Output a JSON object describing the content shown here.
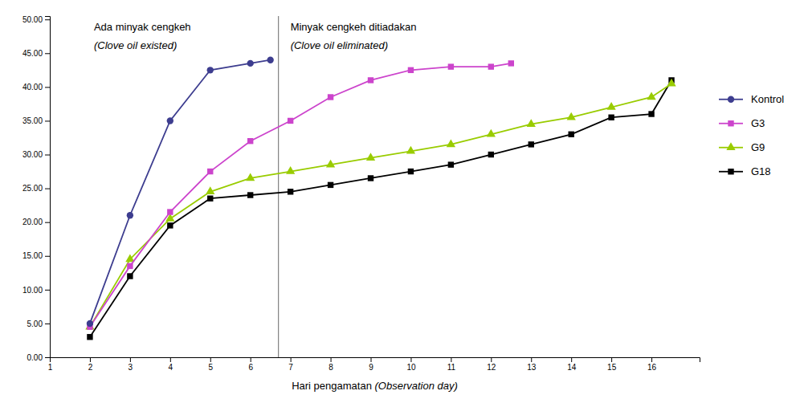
{
  "chart_data": {
    "type": "line",
    "xlabel": "Hari pengamatan (Observation day)",
    "series": [
      {
        "name": "Kontrol",
        "color": "#3d3d8f",
        "marker": "circle",
        "x": [
          2,
          3,
          4,
          5,
          6,
          6.5
        ],
        "values": [
          5.0,
          21.0,
          35.0,
          42.5,
          43.5,
          44.0
        ]
      },
      {
        "name": "G3",
        "color": "#cc44cc",
        "marker": "square",
        "x": [
          2,
          3,
          4,
          5,
          6,
          7,
          8,
          9,
          10,
          11,
          12,
          12.5
        ],
        "values": [
          4.5,
          13.5,
          21.5,
          27.5,
          32.0,
          35.0,
          38.5,
          41.0,
          42.5,
          43.0,
          43.0,
          43.5
        ]
      },
      {
        "name": "G9",
        "color": "#99cc00",
        "marker": "triangle",
        "x": [
          2,
          3,
          4,
          5,
          6,
          7,
          8,
          9,
          10,
          11,
          12,
          13,
          14,
          15,
          16,
          16.5
        ],
        "values": [
          4.5,
          14.5,
          20.5,
          24.5,
          26.5,
          27.5,
          28.5,
          29.5,
          30.5,
          31.5,
          33.0,
          34.5,
          35.5,
          37.0,
          38.5,
          40.5
        ]
      },
      {
        "name": "G18",
        "color": "#000000",
        "marker": "square",
        "x": [
          2,
          3,
          4,
          5,
          6,
          7,
          8,
          9,
          10,
          11,
          12,
          13,
          14,
          15,
          16,
          16.5
        ],
        "values": [
          3.0,
          12.0,
          19.5,
          23.5,
          24.0,
          24.5,
          25.5,
          26.5,
          27.5,
          28.5,
          30.0,
          31.5,
          33.0,
          35.5,
          36.0,
          41.0
        ]
      }
    ],
    "vlines": [
      {
        "x": 6.7,
        "color": "gray"
      }
    ],
    "annotations": [
      {
        "text": "Ada minyak cengkeh",
        "x": 2.1,
        "y": 49.8
      },
      {
        "text": "(Clove oil existed)",
        "x": 2.1,
        "y": 47.0
      },
      {
        "text": "Minyak cengkeh ditiadakan",
        "x": 7.0,
        "y": 49.8
      },
      {
        "text": "(Clove oil eliminated)",
        "x": 7.0,
        "y": 47.0
      }
    ],
    "xlim": [
      1,
      17.2
    ],
    "ylim": [
      0,
      50.5
    ],
    "xticks": [
      1,
      2,
      3,
      4,
      5,
      6,
      7,
      8,
      9,
      10,
      11,
      12,
      13,
      14,
      15,
      16
    ],
    "yticks": [
      {
        "value": 0.0,
        "label": "0.00"
      },
      {
        "value": 5.0,
        "label": "5.00"
      },
      {
        "value": 10.0,
        "label": "10.00"
      },
      {
        "value": 15.0,
        "label": "15.00"
      },
      {
        "value": 20.0,
        "label": "20.00"
      },
      {
        "value": 25.0,
        "label": "25.00"
      },
      {
        "value": 30.0,
        "label": "30.00"
      },
      {
        "value": 35.0,
        "label": "35.00"
      },
      {
        "value": 40.0,
        "label": "40.00"
      },
      {
        "value": 45.0,
        "label": "45.00"
      },
      {
        "value": 50.0,
        "label": "50.00"
      }
    ],
    "grid": false,
    "legend": "right"
  }
}
